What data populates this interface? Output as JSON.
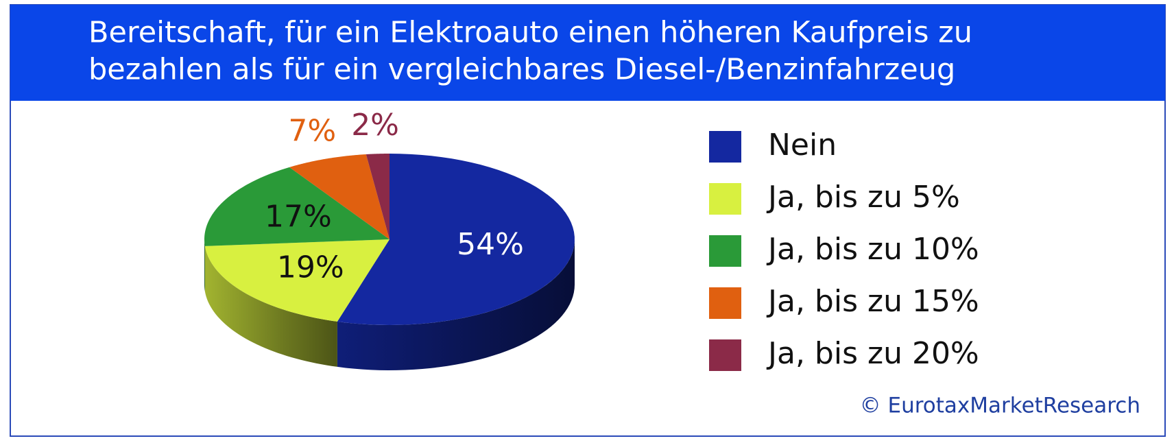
{
  "chart_data": {
    "type": "pie",
    "title": [
      "Bereitschaft, für ein Elektroauto einen höheren Kaufpreis zu",
      "bezahlen als für ein vergleichbares Diesel-/Benzinfahrzeug"
    ],
    "categories": [
      "Nein",
      "Ja, bis zu 5%",
      "Ja, bis zu 10%",
      "Ja, bis zu 15%",
      "Ja, bis zu 20%"
    ],
    "values": [
      54,
      19,
      17,
      7,
      2
    ],
    "value_labels": [
      "54%",
      "19%",
      "17%",
      "7%",
      "2%"
    ],
    "colors": [
      "#1428a0",
      "#d8f040",
      "#2a9a38",
      "#e06010",
      "#8b2a48"
    ],
    "legend": "right",
    "source": "© EurotaxMarketResearch"
  }
}
